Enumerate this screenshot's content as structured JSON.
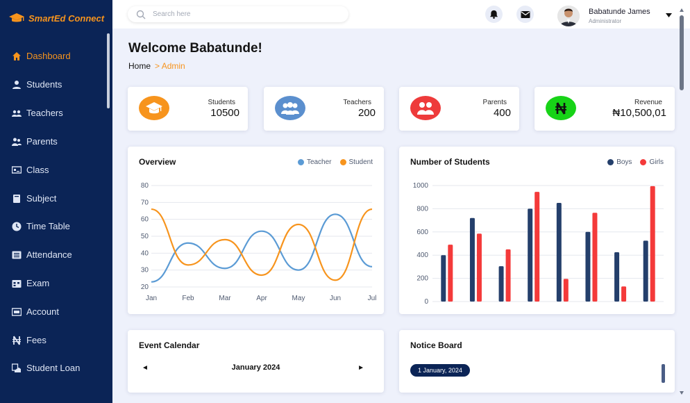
{
  "brand": {
    "name": "SmartEd Connect"
  },
  "sidebar": {
    "items": [
      {
        "label": "Dashboard",
        "icon": "home-icon",
        "active": true
      },
      {
        "label": "Students",
        "icon": "user-icon"
      },
      {
        "label": "Teachers",
        "icon": "users-icon"
      },
      {
        "label": "Parents",
        "icon": "users-icon"
      },
      {
        "label": "Class",
        "icon": "chalkboard-icon"
      },
      {
        "label": "Subject",
        "icon": "book-icon"
      },
      {
        "label": "Time Table",
        "icon": "clock-icon"
      },
      {
        "label": "Attendance",
        "icon": "list-icon"
      },
      {
        "label": "Exam",
        "icon": "calendar-icon"
      },
      {
        "label": "Account",
        "icon": "bank-icon"
      },
      {
        "label": "Fees",
        "icon": "naira-icon"
      },
      {
        "label": "Student Loan",
        "icon": "loan-icon"
      }
    ]
  },
  "header": {
    "search_placeholder": "Search here",
    "user_name": "Babatunde James",
    "user_role": "Administrator"
  },
  "page": {
    "title": "Welcome Babatunde!",
    "breadcrumb_home": "Home",
    "breadcrumb_current": "> Admin"
  },
  "stats": [
    {
      "label": "Students",
      "value": "10500",
      "color": "#f7941d",
      "icon": "graduation-cap-icon"
    },
    {
      "label": "Teachers",
      "value": "200",
      "color": "#5b8fce",
      "icon": "teachers-icon"
    },
    {
      "label": "Parents",
      "value": "400",
      "color": "#ee3b3b",
      "icon": "parents-icon"
    },
    {
      "label": "Revenue",
      "value": "₦10,500,01",
      "color": "#17d317",
      "icon": "naira-icon"
    }
  ],
  "overview": {
    "title": "Overview",
    "legend": [
      "Teacher",
      "Student"
    ]
  },
  "students_chart": {
    "title": "Number of Students",
    "legend": [
      "Boys",
      "Girls"
    ]
  },
  "chart_data": [
    {
      "type": "line",
      "title": "Overview",
      "x": [
        "Jan",
        "Feb",
        "Mar",
        "Apr",
        "May",
        "Jun",
        "Jul"
      ],
      "ylim": [
        20,
        80
      ],
      "yticks": [
        20,
        30,
        40,
        50,
        60,
        70,
        80
      ],
      "grid": true,
      "legend_position": "top-right",
      "series": [
        {
          "name": "Teacher",
          "color": "#5b9bd5",
          "values": [
            23,
            46,
            31,
            53,
            30,
            63,
            32
          ]
        },
        {
          "name": "Student",
          "color": "#f7941d",
          "values": [
            66,
            33,
            48,
            27,
            57,
            24,
            66
          ]
        }
      ]
    },
    {
      "type": "bar",
      "title": "Number of Students",
      "categories": [
        "",
        "",
        "",
        "",
        "",
        "",
        "",
        ""
      ],
      "ylim": [
        0,
        1000
      ],
      "yticks": [
        0,
        200,
        400,
        600,
        800,
        1000
      ],
      "grid": true,
      "legend_position": "top-right",
      "series": [
        {
          "name": "Boys",
          "color": "#243f6b",
          "values": [
            400,
            720,
            305,
            800,
            850,
            600,
            425,
            525
          ]
        },
        {
          "name": "Girls",
          "color": "#f43a3a",
          "values": [
            490,
            585,
            450,
            945,
            195,
            765,
            130,
            995
          ]
        }
      ]
    }
  ],
  "calendar": {
    "title": "Event Calendar",
    "month": "January 2024",
    "prev": "◄",
    "next": "►"
  },
  "notice": {
    "title": "Notice Board",
    "badge": "1 January, 2024"
  }
}
